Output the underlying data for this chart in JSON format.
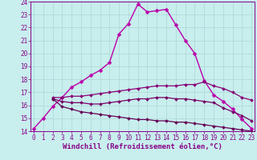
{
  "series": [
    {
      "x": [
        0,
        1,
        2,
        3,
        4,
        5,
        6,
        7,
        8,
        9,
        10,
        11,
        12,
        13,
        14,
        15,
        16,
        17,
        18,
        19,
        20,
        21,
        22,
        23
      ],
      "y": [
        14.2,
        15.0,
        15.9,
        16.6,
        17.4,
        17.8,
        18.3,
        18.7,
        19.3,
        21.5,
        22.3,
        23.8,
        23.2,
        23.3,
        23.4,
        22.2,
        21.0,
        20.0,
        17.9,
        16.8,
        16.3,
        15.7,
        14.9,
        14.2
      ],
      "color": "#bb00aa",
      "linewidth": 1.0,
      "marker": "D",
      "markersize": 2.5
    },
    {
      "x": [
        2,
        3,
        4,
        5,
        6,
        7,
        8,
        9,
        10,
        11,
        12,
        13,
        14,
        15,
        16,
        17,
        18,
        19,
        20,
        21,
        22,
        23
      ],
      "y": [
        16.6,
        16.6,
        16.7,
        16.7,
        16.8,
        16.9,
        17.0,
        17.1,
        17.2,
        17.3,
        17.4,
        17.5,
        17.5,
        17.5,
        17.6,
        17.6,
        17.8,
        17.5,
        17.3,
        17.0,
        16.6,
        16.4
      ],
      "color": "#880077",
      "linewidth": 0.9,
      "marker": "D",
      "markersize": 2.0
    },
    {
      "x": [
        2,
        3,
        4,
        5,
        6,
        7,
        8,
        9,
        10,
        11,
        12,
        13,
        14,
        15,
        16,
        17,
        18,
        19,
        20,
        21,
        22,
        23
      ],
      "y": [
        16.5,
        16.3,
        16.2,
        16.2,
        16.1,
        16.1,
        16.2,
        16.3,
        16.4,
        16.5,
        16.5,
        16.6,
        16.6,
        16.5,
        16.5,
        16.4,
        16.3,
        16.2,
        15.8,
        15.5,
        15.2,
        14.8
      ],
      "color": "#770066",
      "linewidth": 0.9,
      "marker": "D",
      "markersize": 2.0
    },
    {
      "x": [
        2,
        3,
        4,
        5,
        6,
        7,
        8,
        9,
        10,
        11,
        12,
        13,
        14,
        15,
        16,
        17,
        18,
        19,
        20,
        21,
        22,
        23
      ],
      "y": [
        16.5,
        15.9,
        15.7,
        15.5,
        15.4,
        15.3,
        15.2,
        15.1,
        15.0,
        14.9,
        14.9,
        14.8,
        14.8,
        14.7,
        14.7,
        14.6,
        14.5,
        14.4,
        14.3,
        14.2,
        14.1,
        14.0
      ],
      "color": "#660055",
      "linewidth": 0.9,
      "marker": "D",
      "markersize": 2.0
    }
  ],
  "xlim": [
    -0.3,
    23.3
  ],
  "ylim": [
    14,
    24
  ],
  "xticks": [
    0,
    1,
    2,
    3,
    4,
    5,
    6,
    7,
    8,
    9,
    10,
    11,
    12,
    13,
    14,
    15,
    16,
    17,
    18,
    19,
    20,
    21,
    22,
    23
  ],
  "yticks": [
    14,
    15,
    16,
    17,
    18,
    19,
    20,
    21,
    22,
    23,
    24
  ],
  "xlabel": "Windchill (Refroidissement éolien,°C)",
  "bg_color": "#c8eeed",
  "grid_color": "#aad8d6",
  "axis_color": "#880088",
  "tick_color": "#880088",
  "label_color": "#880088",
  "tick_fontsize": 5.5,
  "xlabel_fontsize": 6.5
}
